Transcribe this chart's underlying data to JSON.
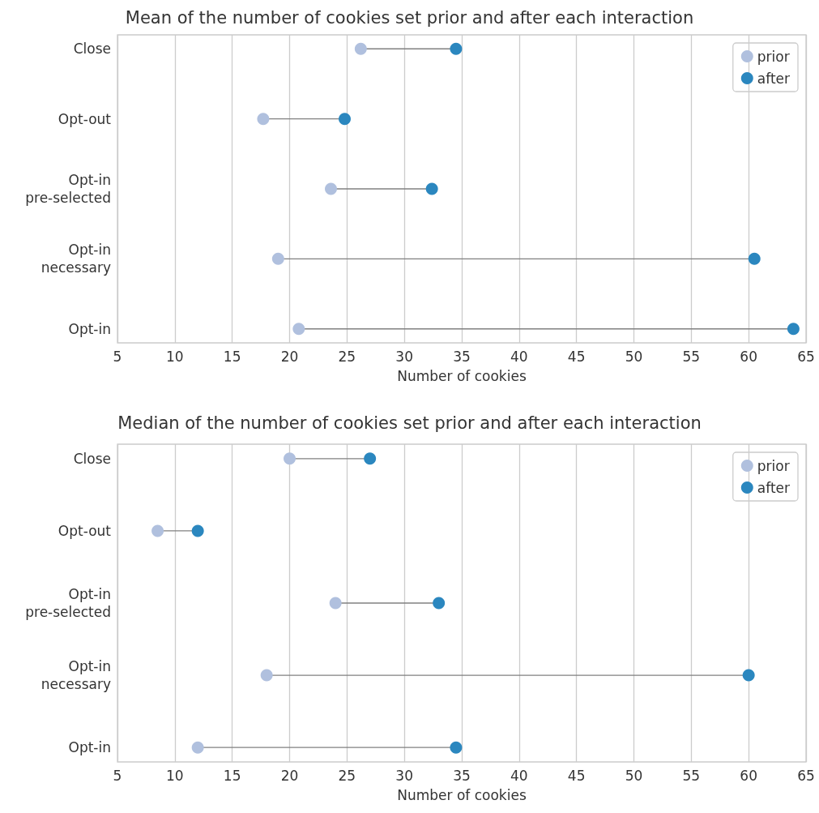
{
  "chart_data": [
    {
      "type": "scatter",
      "orientation": "horizontal",
      "title": "Mean of the number of cookies set prior and after each interaction",
      "xlabel": "Number of cookies",
      "categories": [
        "Close",
        "Opt-out",
        "Opt-in\npre-selected",
        "Opt-in\nnecessary",
        "Opt-in"
      ],
      "series": [
        {
          "name": "prior",
          "color": "#b0c0de",
          "values": [
            26.2,
            17.7,
            23.6,
            19.0,
            20.8
          ]
        },
        {
          "name": "after",
          "color": "#2b87bf",
          "values": [
            34.5,
            24.8,
            32.4,
            60.5,
            63.9
          ]
        }
      ],
      "xlim": [
        5,
        65
      ],
      "xticks": [
        5,
        10,
        15,
        20,
        25,
        30,
        35,
        40,
        45,
        50,
        55,
        60,
        65
      ],
      "grid": "x",
      "legend": "top right",
      "marker": "circle"
    },
    {
      "type": "scatter",
      "orientation": "horizontal",
      "title": "Median of the number of cookies set prior and after each interaction",
      "xlabel": "Number of cookies",
      "categories": [
        "Close",
        "Opt-out",
        "Opt-in\npre-selected",
        "Opt-in\nnecessary",
        "Opt-in"
      ],
      "series": [
        {
          "name": "prior",
          "color": "#b0c0de",
          "values": [
            20,
            8.5,
            24,
            18,
            12
          ]
        },
        {
          "name": "after",
          "color": "#2b87bf",
          "values": [
            27,
            12,
            33,
            60,
            34.5
          ]
        }
      ],
      "xlim": [
        5,
        65
      ],
      "xticks": [
        5,
        10,
        15,
        20,
        25,
        30,
        35,
        40,
        45,
        50,
        55,
        60,
        65
      ],
      "grid": "x",
      "legend": "top right",
      "marker": "circle"
    }
  ]
}
